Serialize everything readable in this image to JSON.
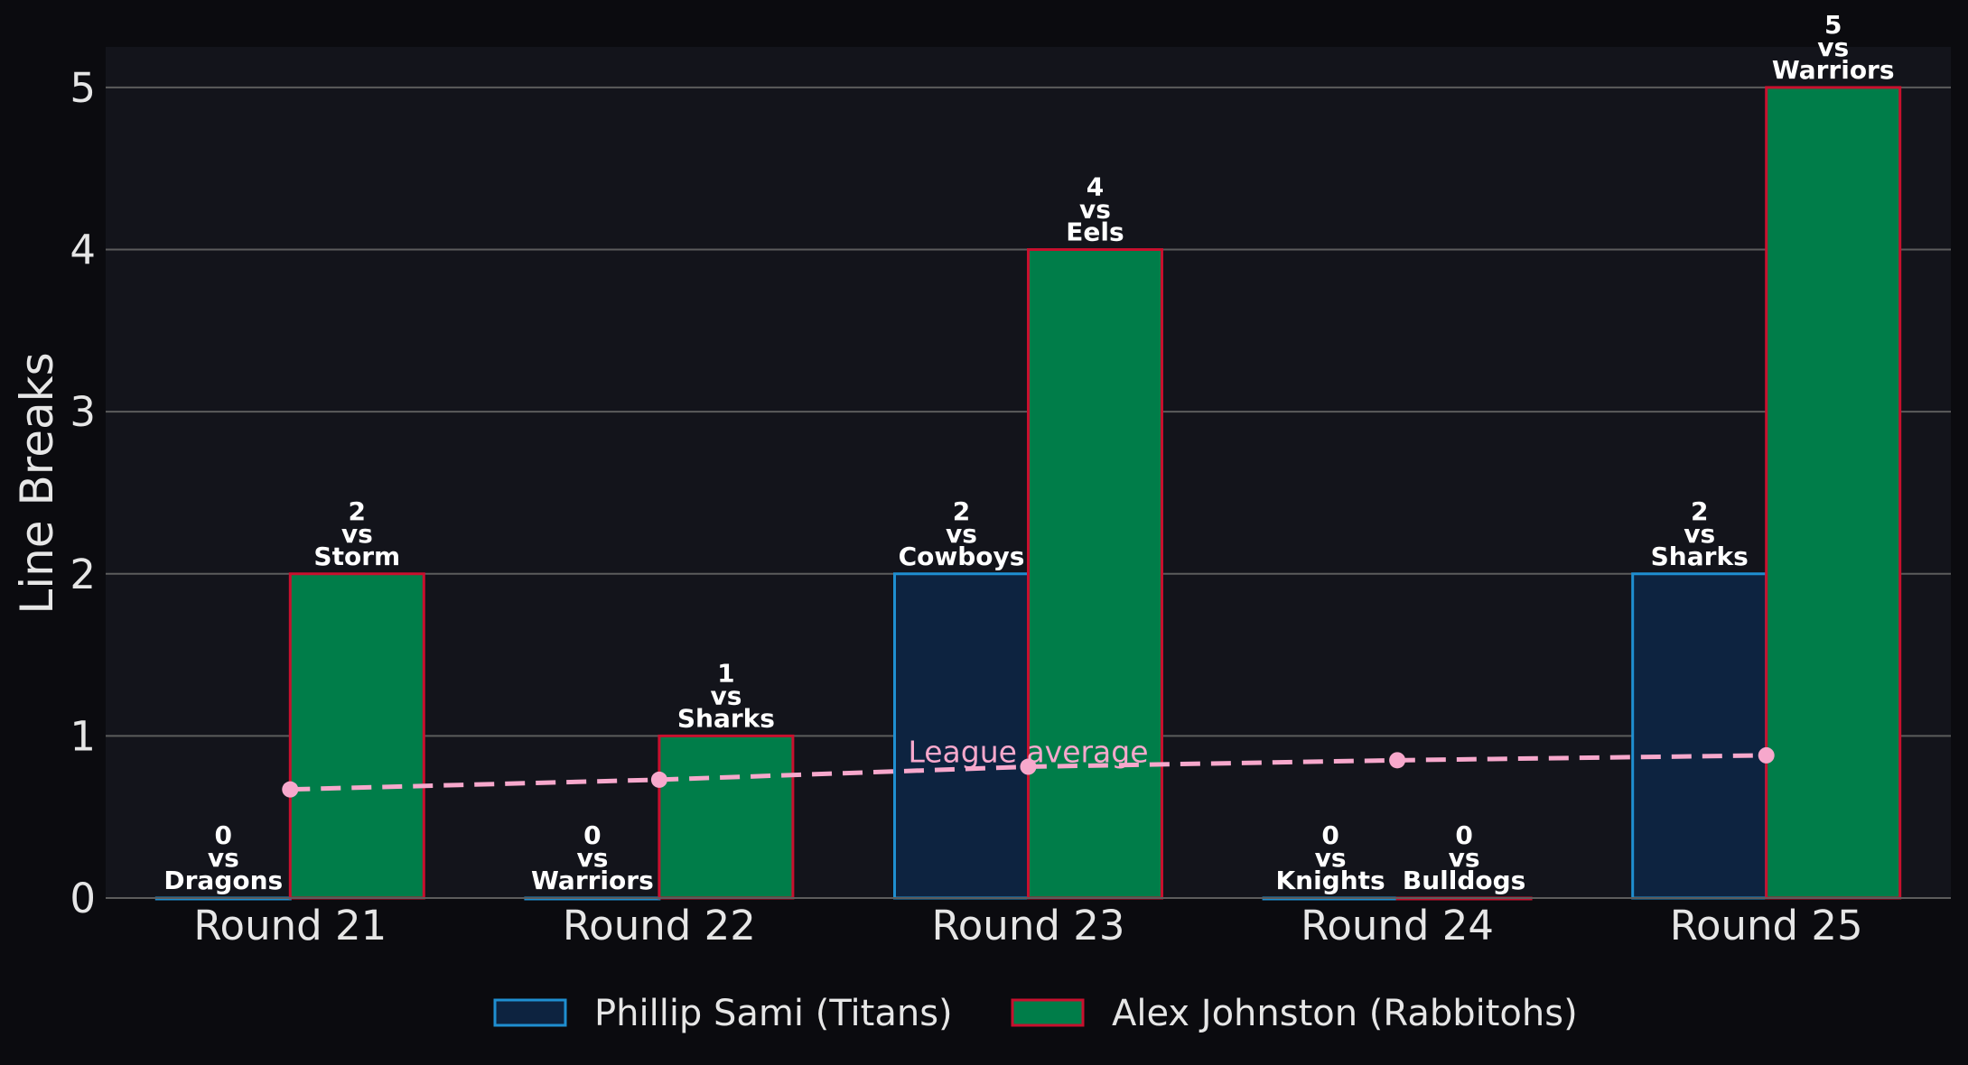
{
  "chart_data": {
    "type": "bar",
    "title": "",
    "xlabel": "",
    "ylabel": "Line Breaks",
    "ylim": [
      0,
      5.25
    ],
    "yticks": [
      "0",
      "1",
      "2",
      "3",
      "4",
      "5"
    ],
    "grid": "horizontal",
    "legend_position": "bottom-center",
    "categories": [
      "Round 21",
      "Round 22",
      "Round 23",
      "Round 24",
      "Round 25"
    ],
    "series": [
      {
        "name": "Phillip Sami (Titans)",
        "values": [
          0,
          0,
          2,
          0,
          2
        ],
        "opponents": [
          "Dragons",
          "Warriors",
          "Cowboys",
          "Knights",
          "Sharks"
        ],
        "fill": "#0d2340",
        "edge": "#1f8fd1"
      },
      {
        "name": "Alex Johnston (Rabbitohs)",
        "values": [
          2,
          1,
          4,
          0,
          5
        ],
        "opponents": [
          "Storm",
          "Sharks",
          "Eels",
          "Bulldogs",
          "Warriors"
        ],
        "fill": "#007d49",
        "edge": "#c8102e"
      }
    ],
    "average_line": {
      "label": "League average",
      "values": [
        0.67,
        0.73,
        0.81,
        0.85,
        0.88
      ],
      "color": "#f7a8cc"
    },
    "vs_text": "vs"
  },
  "colors": {
    "page_background": "#0b0b0f",
    "plot_background": "#13141b",
    "gridline": "#5c5c5c",
    "text": "#e6e6e6"
  }
}
